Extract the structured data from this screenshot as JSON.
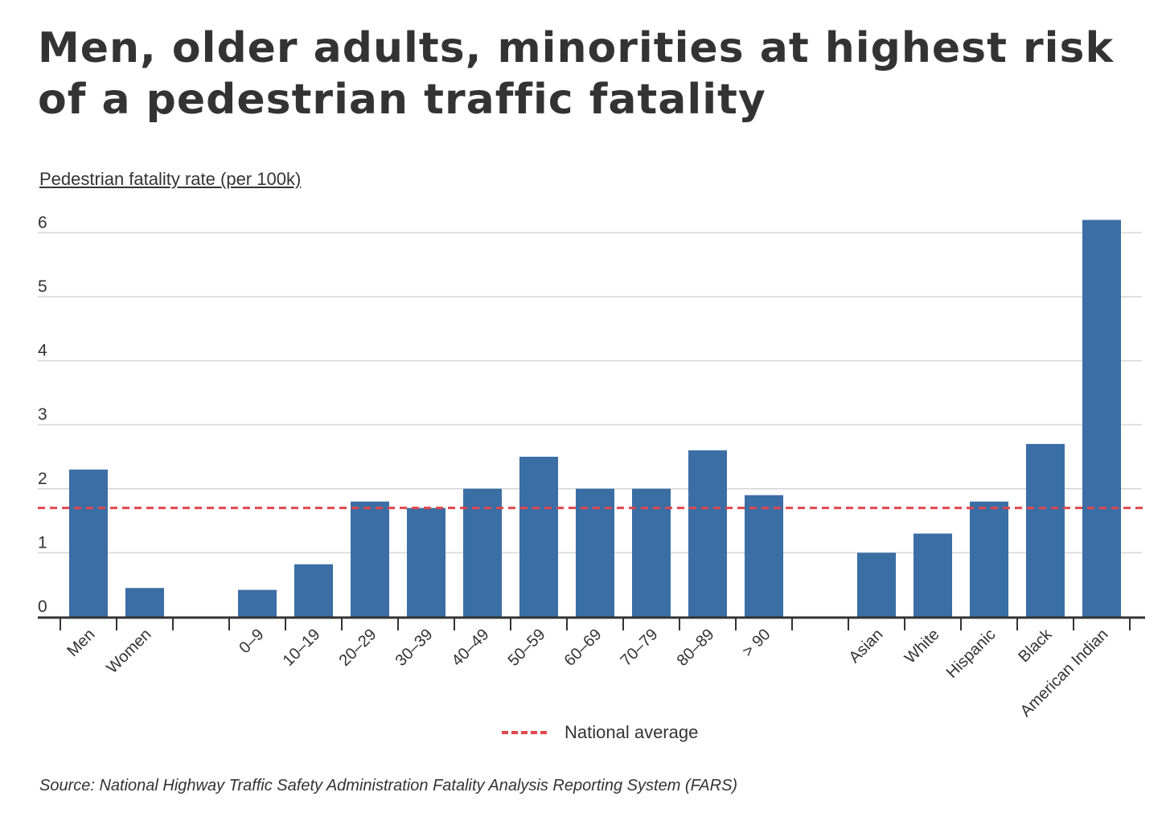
{
  "chart_data": {
    "type": "bar",
    "title": "Men, older adults, minorities at highest risk of a pedestrian traffic fatality",
    "ylabel": "Pedestrian fatality rate (per 100k)",
    "ylim": [
      0,
      6
    ],
    "yticks": [
      0,
      1,
      2,
      3,
      4,
      5,
      6
    ],
    "grid": true,
    "categories": [
      "Men",
      "Women",
      "",
      "0–9",
      "10–19",
      "20–29",
      "30–39",
      "40–49",
      "50–59",
      "60–69",
      "70–79",
      "80–89",
      "> 90",
      "",
      "Asian",
      "White",
      "Hispanic",
      "Black",
      "American Indian"
    ],
    "values": [
      2.3,
      0.45,
      null,
      0.42,
      0.82,
      1.8,
      1.7,
      2.0,
      2.5,
      2.0,
      2.0,
      2.6,
      1.9,
      null,
      1.0,
      1.3,
      1.8,
      2.7,
      6.2
    ],
    "reference_line": {
      "label": "National average",
      "value": 1.7
    },
    "legend": {
      "position": "bottom-center",
      "entries": [
        "National average"
      ]
    },
    "colors": {
      "bar": "#3a6ea5",
      "reference": "#e0474c",
      "grid": "#d6d6d6",
      "axis": "#333333"
    }
  },
  "source": "Source: National Highway Traffic Safety Administration Fatality Analysis Reporting System (FARS)"
}
